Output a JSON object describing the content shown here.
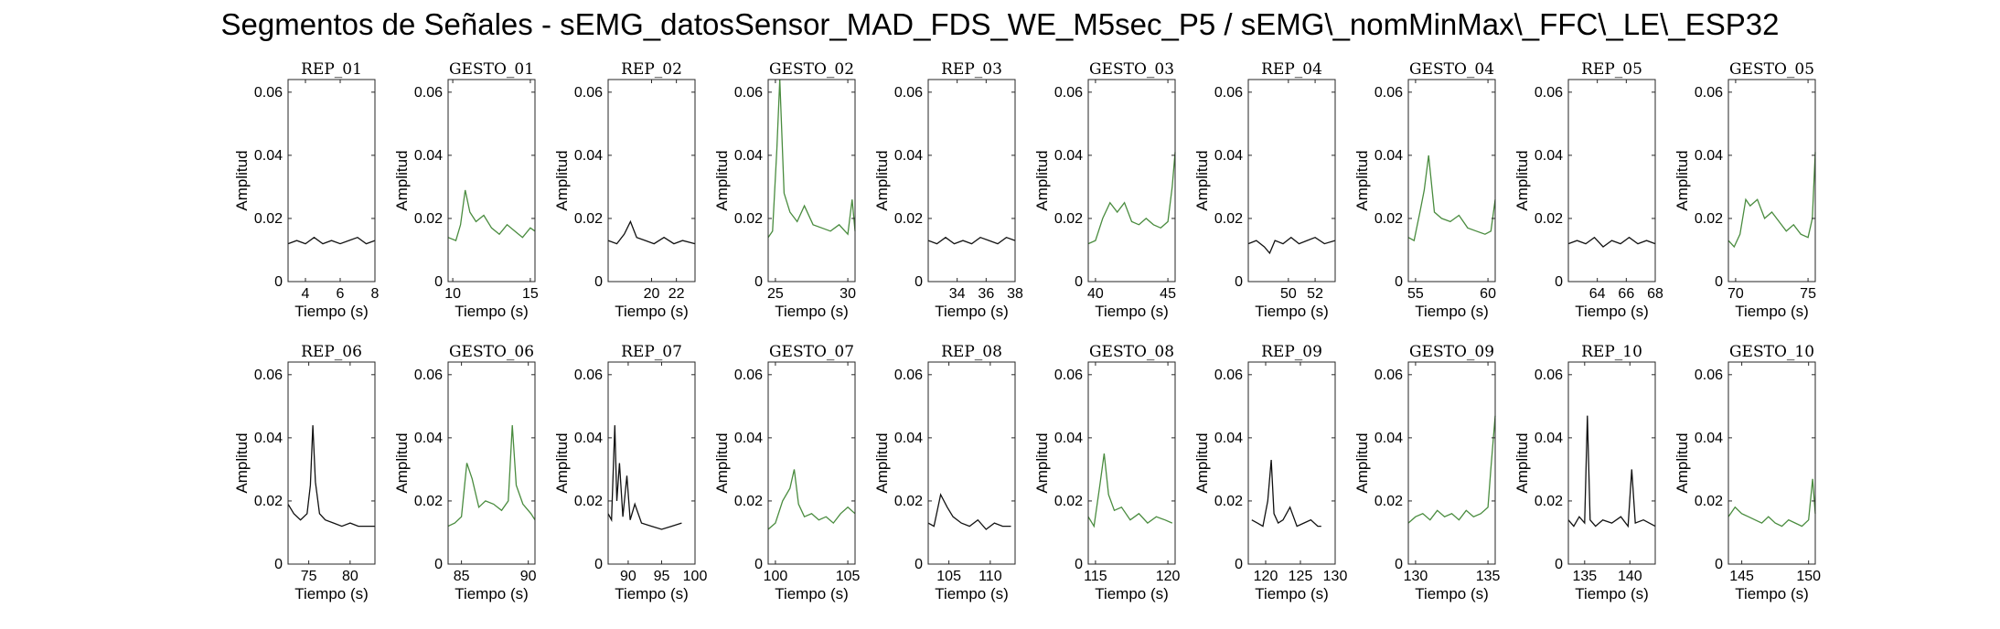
{
  "title": "Segmentos de Señales - sEMG_datosSensor_MAD_FDS_WE_M5sec_P5 / sEMG\\_nomMinMax\\_FFC\\_LE\\_ESP32",
  "colors": {
    "rep": "#111111",
    "gesture": "#4a8c3f",
    "axis": "#262626"
  },
  "chart_data": [
    {
      "type": "line",
      "title": "REP_01",
      "xlabel": "Tiempo (s)",
      "ylabel": "Amplitud",
      "xlim": [
        3,
        8
      ],
      "ylim": [
        0,
        0.064
      ],
      "xticks": [
        4,
        6,
        8
      ],
      "yticks": [
        0,
        0.02,
        0.04,
        0.06
      ],
      "color": "rep",
      "series": [
        {
          "x": [
            3.0,
            3.5,
            4.0,
            4.5,
            5.0,
            5.5,
            6.0,
            6.5,
            7.0,
            7.5,
            8.0
          ],
          "y": [
            0.012,
            0.013,
            0.012,
            0.014,
            0.012,
            0.013,
            0.012,
            0.013,
            0.014,
            0.012,
            0.013
          ]
        }
      ]
    },
    {
      "type": "line",
      "title": "GESTO_01",
      "xlabel": "Tiempo (s)",
      "ylabel": "Amplitud",
      "xlim": [
        9.7,
        15.3
      ],
      "ylim": [
        0,
        0.064
      ],
      "xticks": [
        10,
        15
      ],
      "yticks": [
        0,
        0.02,
        0.04,
        0.06
      ],
      "color": "gesture",
      "series": [
        {
          "x": [
            9.7,
            10.2,
            10.5,
            10.8,
            11.1,
            11.5,
            12.0,
            12.5,
            13.0,
            13.5,
            14.0,
            14.5,
            15.0,
            15.3
          ],
          "y": [
            0.014,
            0.013,
            0.018,
            0.029,
            0.022,
            0.019,
            0.021,
            0.017,
            0.015,
            0.018,
            0.016,
            0.014,
            0.017,
            0.016
          ]
        }
      ]
    },
    {
      "type": "line",
      "title": "REP_02",
      "xlabel": "Tiempo (s)",
      "ylabel": "Amplitud",
      "xlim": [
        16.5,
        23.5
      ],
      "ylim": [
        0,
        0.064
      ],
      "xticks": [
        20,
        22
      ],
      "yticks": [
        0,
        0.02,
        0.04,
        0.06
      ],
      "color": "rep",
      "series": [
        {
          "x": [
            16.5,
            17.2,
            17.8,
            18.3,
            18.8,
            19.5,
            20.2,
            21.0,
            21.8,
            22.5,
            23.5
          ],
          "y": [
            0.013,
            0.012,
            0.015,
            0.019,
            0.014,
            0.013,
            0.012,
            0.014,
            0.012,
            0.013,
            0.012
          ]
        }
      ]
    },
    {
      "type": "line",
      "title": "GESTO_02",
      "xlabel": "Tiempo (s)",
      "ylabel": "Amplitud",
      "xlim": [
        24.5,
        30.5
      ],
      "ylim": [
        0,
        0.064
      ],
      "xticks": [
        25,
        30
      ],
      "yticks": [
        0,
        0.02,
        0.04,
        0.06
      ],
      "color": "gesture",
      "series": [
        {
          "x": [
            24.5,
            24.8,
            25.1,
            25.3,
            25.6,
            26.0,
            26.5,
            27.0,
            27.6,
            28.2,
            28.8,
            29.4,
            30.0,
            30.3,
            30.5
          ],
          "y": [
            0.014,
            0.016,
            0.042,
            0.064,
            0.028,
            0.022,
            0.019,
            0.024,
            0.018,
            0.017,
            0.016,
            0.018,
            0.015,
            0.026,
            0.016
          ]
        }
      ]
    },
    {
      "type": "line",
      "title": "REP_03",
      "xlabel": "Tiempo (s)",
      "ylabel": "Amplitud",
      "xlim": [
        32,
        38
      ],
      "ylim": [
        0,
        0.064
      ],
      "xticks": [
        34,
        36,
        38
      ],
      "yticks": [
        0,
        0.02,
        0.04,
        0.06
      ],
      "color": "rep",
      "series": [
        {
          "x": [
            32.0,
            32.6,
            33.2,
            33.8,
            34.4,
            35.0,
            35.6,
            36.2,
            36.8,
            37.4,
            38.0
          ],
          "y": [
            0.013,
            0.012,
            0.014,
            0.012,
            0.013,
            0.012,
            0.014,
            0.013,
            0.012,
            0.014,
            0.013
          ]
        }
      ]
    },
    {
      "type": "line",
      "title": "GESTO_03",
      "xlabel": "Tiempo (s)",
      "ylabel": "Amplitud",
      "xlim": [
        39.5,
        45.5
      ],
      "ylim": [
        0,
        0.064
      ],
      "xticks": [
        40,
        45
      ],
      "yticks": [
        0,
        0.02,
        0.04,
        0.06
      ],
      "color": "gesture",
      "series": [
        {
          "x": [
            39.5,
            40.0,
            40.5,
            41.0,
            41.5,
            42.0,
            42.5,
            43.0,
            43.5,
            44.0,
            44.5,
            45.0,
            45.3,
            45.5
          ],
          "y": [
            0.012,
            0.013,
            0.02,
            0.025,
            0.022,
            0.025,
            0.019,
            0.018,
            0.02,
            0.018,
            0.017,
            0.019,
            0.03,
            0.041
          ]
        }
      ]
    },
    {
      "type": "line",
      "title": "REP_04",
      "xlabel": "Tiempo (s)",
      "ylabel": "Amplitud",
      "xlim": [
        47,
        53.5
      ],
      "ylim": [
        0,
        0.064
      ],
      "xticks": [
        50,
        52
      ],
      "yticks": [
        0,
        0.02,
        0.04,
        0.06
      ],
      "color": "rep",
      "series": [
        {
          "x": [
            47.0,
            47.6,
            48.2,
            48.6,
            49.0,
            49.6,
            50.2,
            50.8,
            51.4,
            52.0,
            52.7,
            53.5
          ],
          "y": [
            0.012,
            0.013,
            0.011,
            0.009,
            0.013,
            0.012,
            0.014,
            0.012,
            0.013,
            0.014,
            0.012,
            0.013
          ]
        }
      ]
    },
    {
      "type": "line",
      "title": "GESTO_04",
      "xlabel": "Tiempo (s)",
      "ylabel": "Amplitud",
      "xlim": [
        54.5,
        60.5
      ],
      "ylim": [
        0,
        0.064
      ],
      "xticks": [
        55,
        60
      ],
      "yticks": [
        0,
        0.02,
        0.04,
        0.06
      ],
      "color": "gesture",
      "series": [
        {
          "x": [
            54.5,
            54.9,
            55.3,
            55.6,
            55.9,
            56.3,
            56.8,
            57.4,
            58.0,
            58.6,
            59.2,
            59.8,
            60.2,
            60.5
          ],
          "y": [
            0.014,
            0.013,
            0.022,
            0.029,
            0.04,
            0.022,
            0.02,
            0.019,
            0.021,
            0.017,
            0.016,
            0.015,
            0.016,
            0.026
          ]
        }
      ]
    },
    {
      "type": "line",
      "title": "REP_05",
      "xlabel": "Tiempo (s)",
      "ylabel": "Amplitud",
      "xlim": [
        62,
        68
      ],
      "ylim": [
        0,
        0.064
      ],
      "xticks": [
        64,
        66,
        68
      ],
      "yticks": [
        0,
        0.02,
        0.04,
        0.06
      ],
      "color": "rep",
      "series": [
        {
          "x": [
            62.0,
            62.6,
            63.2,
            63.8,
            64.4,
            65.0,
            65.6,
            66.2,
            66.8,
            67.4,
            68.0
          ],
          "y": [
            0.012,
            0.013,
            0.012,
            0.014,
            0.011,
            0.013,
            0.012,
            0.014,
            0.012,
            0.013,
            0.012
          ]
        }
      ]
    },
    {
      "type": "line",
      "title": "GESTO_05",
      "xlabel": "Tiempo (s)",
      "ylabel": "Amplitud",
      "xlim": [
        69.5,
        75.5
      ],
      "ylim": [
        0,
        0.064
      ],
      "xticks": [
        70,
        75
      ],
      "yticks": [
        0,
        0.02,
        0.04,
        0.06
      ],
      "color": "gesture",
      "series": [
        {
          "x": [
            69.5,
            69.9,
            70.3,
            70.7,
            71.0,
            71.5,
            72.0,
            72.5,
            73.0,
            73.5,
            74.0,
            74.5,
            75.0,
            75.3,
            75.5
          ],
          "y": [
            0.013,
            0.011,
            0.015,
            0.026,
            0.024,
            0.026,
            0.02,
            0.022,
            0.019,
            0.016,
            0.018,
            0.015,
            0.014,
            0.02,
            0.041
          ]
        }
      ]
    },
    {
      "type": "line",
      "title": "REP_06",
      "xlabel": "Tiempo (s)",
      "ylabel": "Amplitud",
      "xlim": [
        72.5,
        83
      ],
      "ylim": [
        0,
        0.064
      ],
      "xticks": [
        75,
        80
      ],
      "yticks": [
        0,
        0.02,
        0.04,
        0.06
      ],
      "color": "rep",
      "series": [
        {
          "x": [
            72.5,
            73.2,
            74.0,
            74.8,
            75.2,
            75.5,
            75.8,
            76.3,
            77.0,
            78.0,
            79.0,
            80.0,
            81.0,
            82.0,
            83.0
          ],
          "y": [
            0.019,
            0.016,
            0.014,
            0.016,
            0.025,
            0.044,
            0.026,
            0.016,
            0.014,
            0.013,
            0.012,
            0.013,
            0.012,
            0.012,
            0.012
          ]
        }
      ]
    },
    {
      "type": "line",
      "title": "GESTO_06",
      "xlabel": "Tiempo (s)",
      "ylabel": "Amplitud",
      "xlim": [
        84,
        90.5
      ],
      "ylim": [
        0,
        0.064
      ],
      "xticks": [
        85,
        90
      ],
      "yticks": [
        0,
        0.02,
        0.04,
        0.06
      ],
      "color": "gesture",
      "series": [
        {
          "x": [
            84.0,
            84.5,
            85.0,
            85.4,
            85.8,
            86.3,
            86.8,
            87.4,
            88.0,
            88.5,
            88.8,
            89.1,
            89.6,
            90.2,
            90.5
          ],
          "y": [
            0.012,
            0.013,
            0.015,
            0.032,
            0.027,
            0.018,
            0.02,
            0.019,
            0.017,
            0.02,
            0.044,
            0.025,
            0.019,
            0.016,
            0.014
          ]
        }
      ]
    },
    {
      "type": "line",
      "title": "REP_07",
      "xlabel": "Tiempo (s)",
      "ylabel": "Amplitud",
      "xlim": [
        87,
        100
      ],
      "ylim": [
        0,
        0.064
      ],
      "xticks": [
        90,
        95,
        100
      ],
      "yticks": [
        0,
        0.02,
        0.04,
        0.06
      ],
      "color": "rep",
      "series": [
        {
          "x": [
            87.0,
            87.5,
            88.0,
            88.3,
            88.7,
            89.2,
            89.8,
            90.3,
            91.0,
            92.0,
            93.5,
            95.0,
            96.5,
            98.0
          ],
          "y": [
            0.016,
            0.014,
            0.044,
            0.02,
            0.032,
            0.015,
            0.028,
            0.014,
            0.019,
            0.013,
            0.012,
            0.011,
            0.012,
            0.013
          ]
        }
      ]
    },
    {
      "type": "line",
      "title": "GESTO_07",
      "xlabel": "Tiempo (s)",
      "ylabel": "Amplitud",
      "xlim": [
        99.5,
        105.5
      ],
      "ylim": [
        0,
        0.064
      ],
      "xticks": [
        100,
        105
      ],
      "yticks": [
        0,
        0.02,
        0.04,
        0.06
      ],
      "color": "gesture",
      "series": [
        {
          "x": [
            99.5,
            100.0,
            100.5,
            101.0,
            101.3,
            101.6,
            102.0,
            102.5,
            103.0,
            103.5,
            104.0,
            104.5,
            105.0,
            105.5
          ],
          "y": [
            0.011,
            0.013,
            0.02,
            0.024,
            0.03,
            0.019,
            0.015,
            0.016,
            0.014,
            0.015,
            0.013,
            0.016,
            0.018,
            0.016
          ]
        }
      ]
    },
    {
      "type": "line",
      "title": "REP_08",
      "xlabel": "Tiempo (s)",
      "ylabel": "Amplitud",
      "xlim": [
        102.5,
        113
      ],
      "ylim": [
        0,
        0.064
      ],
      "xticks": [
        105,
        110
      ],
      "yticks": [
        0,
        0.02,
        0.04,
        0.06
      ],
      "color": "rep",
      "series": [
        {
          "x": [
            102.5,
            103.2,
            104.0,
            104.8,
            105.5,
            106.5,
            107.5,
            108.5,
            109.5,
            110.5,
            111.5,
            112.5
          ],
          "y": [
            0.013,
            0.012,
            0.022,
            0.018,
            0.015,
            0.013,
            0.012,
            0.014,
            0.011,
            0.013,
            0.012,
            0.012
          ]
        }
      ]
    },
    {
      "type": "line",
      "title": "GESTO_08",
      "xlabel": "Tiempo (s)",
      "ylabel": "Amplitud",
      "xlim": [
        114.5,
        120.5
      ],
      "ylim": [
        0,
        0.064
      ],
      "xticks": [
        115,
        120
      ],
      "yticks": [
        0,
        0.02,
        0.04,
        0.06
      ],
      "color": "gesture",
      "series": [
        {
          "x": [
            114.5,
            114.9,
            115.3,
            115.6,
            115.9,
            116.3,
            116.8,
            117.4,
            118.0,
            118.6,
            119.2,
            119.8,
            120.3
          ],
          "y": [
            0.015,
            0.012,
            0.025,
            0.035,
            0.022,
            0.017,
            0.018,
            0.014,
            0.016,
            0.013,
            0.015,
            0.014,
            0.013
          ]
        }
      ]
    },
    {
      "type": "line",
      "title": "REP_09",
      "xlabel": "Tiempo (s)",
      "ylabel": "Amplitud",
      "xlim": [
        117.5,
        130
      ],
      "ylim": [
        0,
        0.064
      ],
      "xticks": [
        120,
        125,
        130
      ],
      "yticks": [
        0,
        0.02,
        0.04,
        0.06
      ],
      "color": "rep",
      "series": [
        {
          "x": [
            118.0,
            118.8,
            119.6,
            120.3,
            120.8,
            121.2,
            121.8,
            122.5,
            123.5,
            124.5,
            125.5,
            126.5,
            127.5,
            128.0
          ],
          "y": [
            0.014,
            0.013,
            0.012,
            0.02,
            0.033,
            0.016,
            0.013,
            0.014,
            0.018,
            0.012,
            0.013,
            0.014,
            0.012,
            0.012
          ]
        }
      ]
    },
    {
      "type": "line",
      "title": "GESTO_09",
      "xlabel": "Tiempo (s)",
      "ylabel": "Amplitud",
      "xlim": [
        129.5,
        135.5
      ],
      "ylim": [
        0,
        0.064
      ],
      "xticks": [
        130,
        135
      ],
      "yticks": [
        0,
        0.02,
        0.04,
        0.06
      ],
      "color": "gesture",
      "series": [
        {
          "x": [
            129.5,
            130.0,
            130.5,
            131.0,
            131.5,
            132.0,
            132.5,
            133.0,
            133.5,
            134.0,
            134.5,
            135.0,
            135.2,
            135.5
          ],
          "y": [
            0.013,
            0.015,
            0.016,
            0.014,
            0.017,
            0.015,
            0.016,
            0.014,
            0.017,
            0.015,
            0.016,
            0.018,
            0.03,
            0.047
          ]
        }
      ]
    },
    {
      "type": "line",
      "title": "REP_10",
      "xlabel": "Tiempo (s)",
      "ylabel": "Amplitud",
      "xlim": [
        133.2,
        142.8
      ],
      "ylim": [
        0,
        0.064
      ],
      "xticks": [
        135,
        140
      ],
      "yticks": [
        0,
        0.02,
        0.04,
        0.06
      ],
      "color": "rep",
      "series": [
        {
          "x": [
            133.2,
            133.8,
            134.4,
            135.0,
            135.3,
            135.6,
            136.2,
            137.0,
            138.0,
            139.0,
            139.8,
            140.2,
            140.6,
            141.5,
            142.8
          ],
          "y": [
            0.014,
            0.012,
            0.015,
            0.013,
            0.047,
            0.014,
            0.012,
            0.014,
            0.013,
            0.015,
            0.012,
            0.03,
            0.013,
            0.014,
            0.012
          ]
        }
      ]
    },
    {
      "type": "line",
      "title": "GESTO_10",
      "xlabel": "Tiempo (s)",
      "ylabel": "Amplitud",
      "xlim": [
        144,
        150.5
      ],
      "ylim": [
        0,
        0.064
      ],
      "xticks": [
        145,
        150
      ],
      "yticks": [
        0,
        0.02,
        0.04,
        0.06
      ],
      "color": "gesture",
      "series": [
        {
          "x": [
            144.0,
            144.5,
            145.0,
            145.5,
            146.0,
            146.5,
            147.0,
            147.5,
            148.0,
            148.5,
            149.0,
            149.5,
            150.0,
            150.3,
            150.5
          ],
          "y": [
            0.015,
            0.018,
            0.016,
            0.015,
            0.014,
            0.013,
            0.015,
            0.013,
            0.012,
            0.014,
            0.013,
            0.012,
            0.014,
            0.027,
            0.016
          ]
        }
      ]
    }
  ]
}
